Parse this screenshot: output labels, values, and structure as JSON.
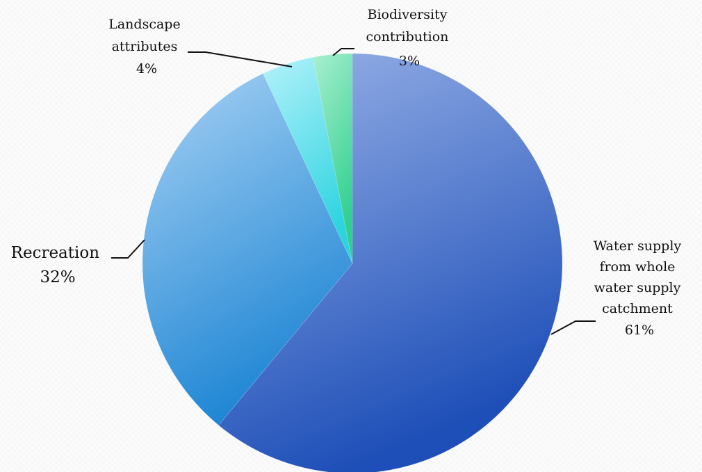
{
  "chart_data": {
    "type": "pie",
    "title": "",
    "start_angle_deg": 0,
    "direction": "clockwise",
    "slices": [
      {
        "label_lines": [
          "Water supply",
          "from whole",
          "water supply",
          "catchment"
        ],
        "percent_label": "61%",
        "value": 61,
        "color_light": "#9ab3e8",
        "color_dark": "#1e4fb8"
      },
      {
        "label_lines": [
          "Recreation"
        ],
        "percent_label": "32%",
        "value": 32,
        "color_light": "#a8d2f4",
        "color_dark": "#1f86d4"
      },
      {
        "label_lines": [
          "Landscape",
          "attributes"
        ],
        "percent_label": "4%",
        "value": 4,
        "color_light": "#b4f2fa",
        "color_dark": "#2dd4e0"
      },
      {
        "label_lines": [
          "Biodiversity",
          "contribution"
        ],
        "percent_label": "3%",
        "value": 3,
        "color_light": "#a9efcf",
        "color_dark": "#2fcf8f"
      }
    ]
  }
}
